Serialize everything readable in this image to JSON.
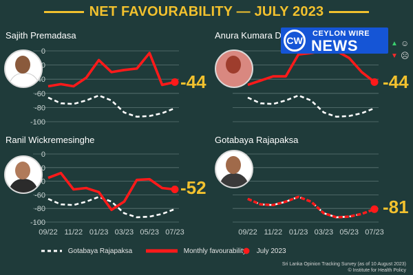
{
  "header": {
    "title": "NET FAVOURABILITY — JULY 2023"
  },
  "logo": {
    "mark": "CW",
    "line1": "CEYLON WIRE",
    "line2": "NEWS"
  },
  "colors": {
    "background": "#1f3b3a",
    "accent": "#f2c12e",
    "series_red": "#ff1a1a",
    "series_white": "#ffffff"
  },
  "chart_data": [
    {
      "type": "line",
      "name": "Sajith Premadasa",
      "x": [
        "09/22",
        "10/22",
        "11/22",
        "12/22",
        "01/23",
        "02/23",
        "03/23",
        "04/23",
        "05/23",
        "06/23",
        "07/23"
      ],
      "ylim": [
        -100,
        0
      ],
      "yticks": [
        "0",
        "-20",
        "-40",
        "-60",
        "-80",
        "-100"
      ],
      "series": [
        {
          "name": "Monthly favourability",
          "values": [
            -50,
            -47,
            -50,
            -38,
            -13,
            -30,
            -27,
            -25,
            -3,
            -48,
            -44
          ]
        },
        {
          "name": "Gotabaya Rajapaksa",
          "values": [
            -66,
            -74,
            -75,
            -70,
            -63,
            -70,
            -87,
            -93,
            -92,
            -88,
            -81
          ]
        }
      ],
      "latest": "-44"
    },
    {
      "type": "line",
      "name": "Anura Kumara Dissanayake",
      "x": [
        "09/22",
        "10/22",
        "11/22",
        "12/22",
        "01/23",
        "02/23",
        "03/23",
        "04/23",
        "05/23",
        "06/23",
        "07/23"
      ],
      "ylim": [
        -100,
        0
      ],
      "series": [
        {
          "name": "Monthly favourability",
          "values": [
            -48,
            -42,
            -36,
            -36,
            -5,
            -3,
            0,
            0,
            -10,
            -30,
            -44
          ]
        },
        {
          "name": "Gotabaya Rajapaksa",
          "values": [
            -66,
            -74,
            -75,
            -70,
            -63,
            -70,
            -87,
            -93,
            -92,
            -88,
            -81
          ]
        }
      ],
      "latest": "-44"
    },
    {
      "type": "line",
      "name": "Ranil Wickremesinghe",
      "x": [
        "09/22",
        "10/22",
        "11/22",
        "12/22",
        "01/23",
        "02/23",
        "03/23",
        "04/23",
        "05/23",
        "06/23",
        "07/23"
      ],
      "ylim": [
        -100,
        0
      ],
      "yticks": [
        "0",
        "-20",
        "-40",
        "-60",
        "-80",
        "-100"
      ],
      "series": [
        {
          "name": "Monthly favourability",
          "values": [
            -35,
            -28,
            -52,
            -50,
            -56,
            -82,
            -70,
            -38,
            -37,
            -50,
            -52
          ]
        },
        {
          "name": "Gotabaya Rajapaksa",
          "values": [
            -66,
            -74,
            -75,
            -70,
            -63,
            -70,
            -87,
            -93,
            -92,
            -88,
            -81
          ]
        }
      ],
      "latest": "-52"
    },
    {
      "type": "line",
      "name": "Gotabaya Rajapaksa",
      "x": [
        "09/22",
        "10/22",
        "11/22",
        "12/22",
        "01/23",
        "02/23",
        "03/23",
        "04/23",
        "05/23",
        "06/23",
        "07/23"
      ],
      "ylim": [
        -100,
        0
      ],
      "series": [
        {
          "name": "Monthly favourability",
          "values": [
            -66,
            -74,
            -75,
            -70,
            -63,
            -70,
            -87,
            -93,
            -92,
            -88,
            -81
          ]
        },
        {
          "name": "Gotabaya Rajapaksa",
          "values": [
            -66,
            -74,
            -75,
            -70,
            -63,
            -70,
            -87,
            -93,
            -92,
            -88,
            -81
          ]
        }
      ],
      "latest": "-81"
    }
  ],
  "x_tick_labels": [
    "09/22",
    "11/22",
    "01/23",
    "03/23",
    "05/23",
    "07/23"
  ],
  "legend": {
    "dashed": "Gotabaya Rajapaksa",
    "solid": "Monthly favourability",
    "dot": "July 2023"
  },
  "source": {
    "line1": "Sri Lanka Opinion Tracking Survey (as of 10 August 2023)",
    "line2": "© Institute for Health Policy"
  }
}
